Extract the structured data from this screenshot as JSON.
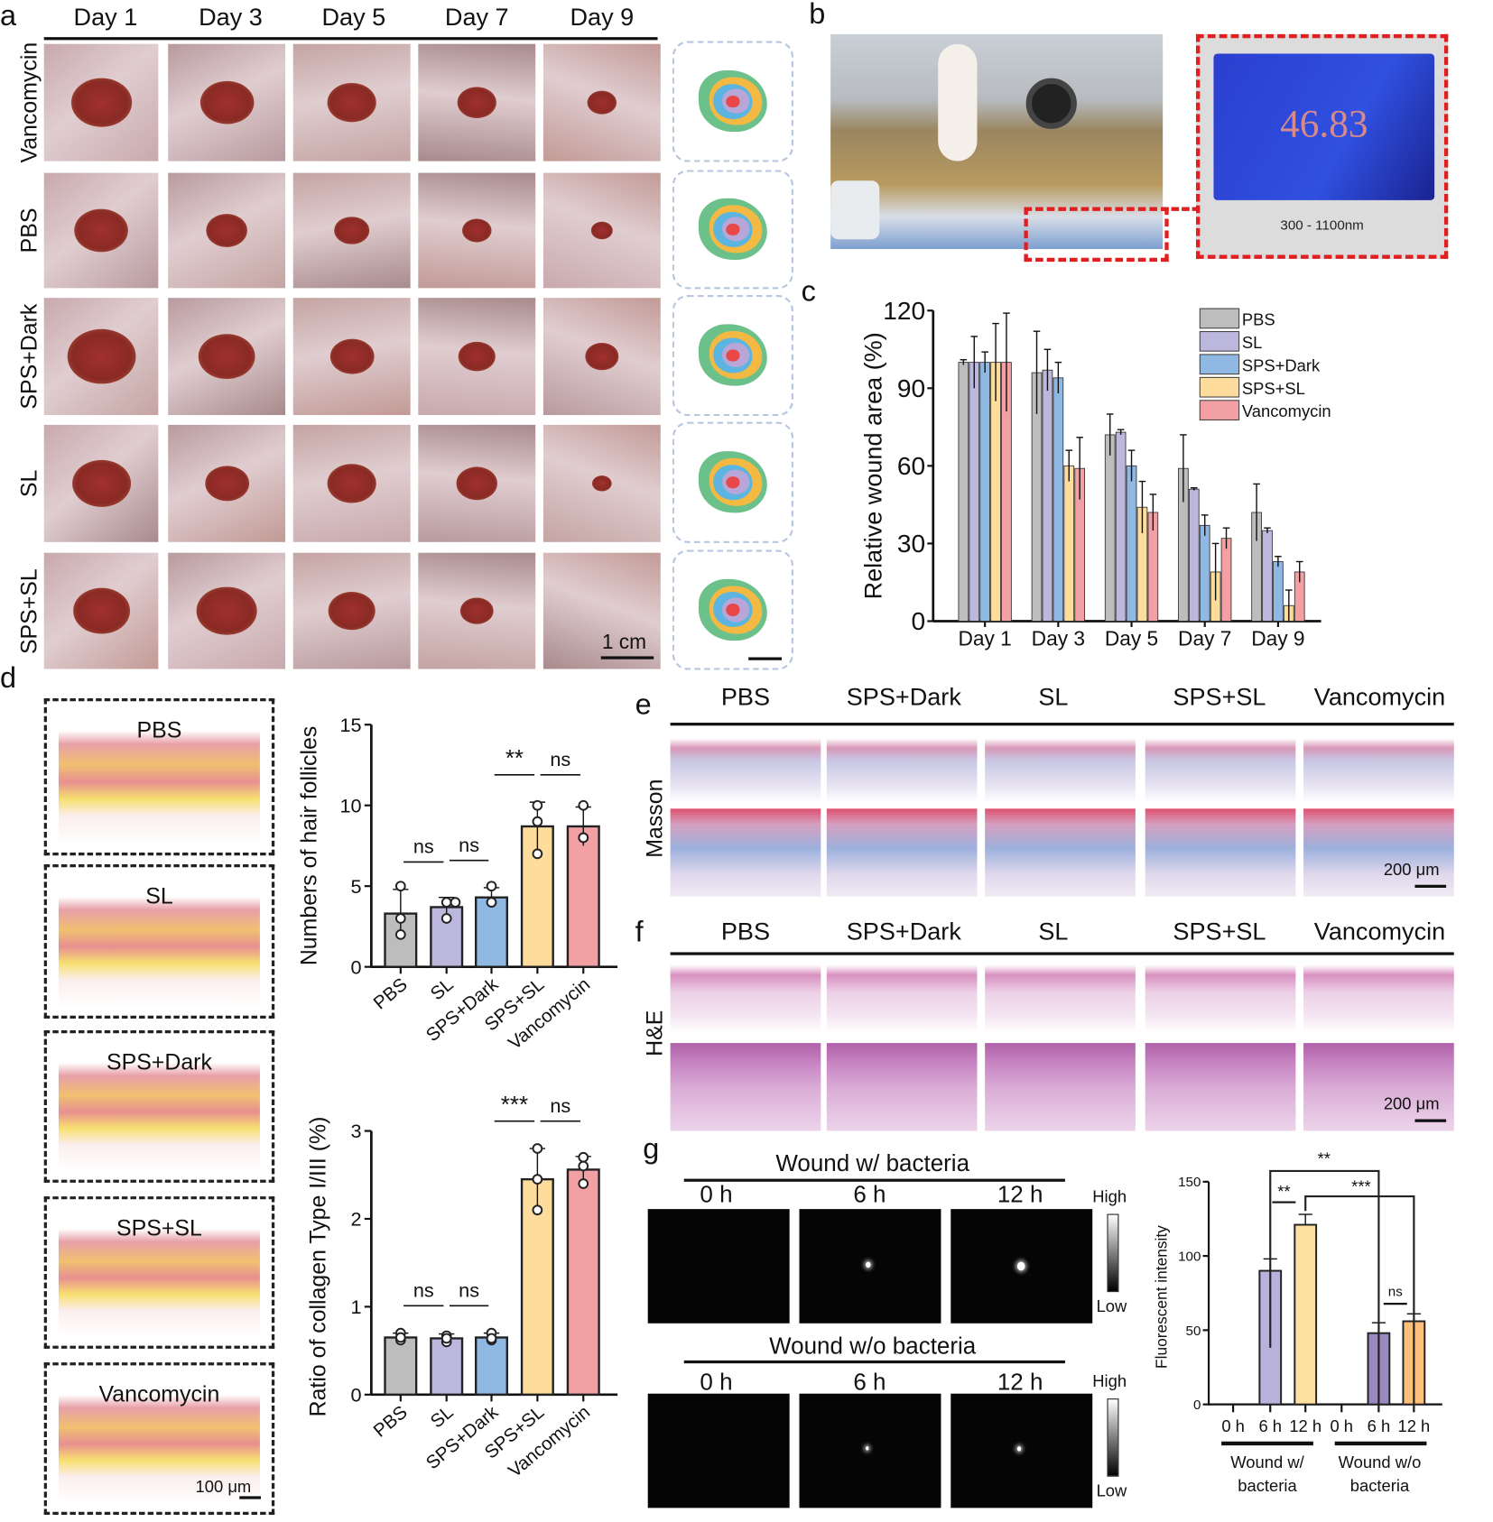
{
  "panel_labels": {
    "a": "a",
    "b": "b",
    "c": "c",
    "d": "d",
    "e": "e",
    "f": "f",
    "g": "g"
  },
  "panel_a": {
    "days": [
      "Day 1",
      "Day 3",
      "Day 5",
      "Day 7",
      "Day 9"
    ],
    "groups": [
      "Vancomycin",
      "PBS",
      "SPS+Dark",
      "SL",
      "SPS+SL"
    ],
    "scale_bar": "1 cm"
  },
  "panel_b": {
    "reading": "46.83",
    "range": "300 - 1100nm"
  },
  "panel_d": {
    "groups": [
      "PBS",
      "SL",
      "SPS+Dark",
      "SPS+SL",
      "Vancomycin"
    ],
    "scale_bar": "100 μm"
  },
  "panel_e": {
    "stain": "Masson",
    "groups": [
      "PBS",
      "SPS+Dark",
      "SL",
      "SPS+SL",
      "Vancomycin"
    ],
    "scale_bar": "200 μm"
  },
  "panel_f": {
    "stain": "H&E",
    "groups": [
      "PBS",
      "SPS+Dark",
      "SL",
      "SPS+SL",
      "Vancomycin"
    ],
    "scale_bar": "200 μm"
  },
  "panel_g": {
    "row1_title": "Wound w/ bacteria",
    "row2_title": "Wound w/o bacteria",
    "times": [
      "0 h",
      "6 h",
      "12 h"
    ],
    "colorbar_high": "High",
    "colorbar_low": "Low"
  },
  "colors": {
    "PBS": "#bdbdbd",
    "SL": "#bcb7dd",
    "SPS+Dark": "#8fb8e2",
    "SPS+SL": "#fddc9c",
    "Vancomycin": "#f2a0a4",
    "scale_red": "#e02020"
  },
  "chart_data": [
    {
      "type": "bar",
      "panel": "c",
      "categories": [
        "Day 1",
        "Day 3",
        "Day 5",
        "Day 7",
        "Day 9"
      ],
      "ylabel": "Relative wound area (%)",
      "ylim": [
        0,
        120
      ],
      "yticks": [
        0,
        30,
        60,
        90,
        120
      ],
      "legend": "top-right",
      "series": [
        {
          "name": "PBS",
          "values": [
            100,
            96,
            72,
            59,
            42
          ],
          "error": [
            1,
            16,
            8,
            13,
            11
          ]
        },
        {
          "name": "SL",
          "values": [
            100,
            97,
            73,
            51,
            35
          ],
          "error": [
            10,
            8,
            1,
            0.5,
            1
          ]
        },
        {
          "name": "SPS+Dark",
          "values": [
            100,
            94,
            60,
            37,
            23
          ],
          "error": [
            4,
            6,
            6,
            4,
            2
          ]
        },
        {
          "name": "SPS+SL",
          "values": [
            100,
            60,
            44,
            19,
            6
          ],
          "error": [
            15,
            6,
            10,
            11,
            6
          ]
        },
        {
          "name": "Vancomycin",
          "values": [
            100,
            59,
            42,
            32,
            19
          ],
          "error": [
            19,
            12,
            7,
            4,
            4
          ]
        }
      ]
    },
    {
      "type": "bar",
      "panel": "d-top",
      "categories": [
        "PBS",
        "SL",
        "SPS+Dark",
        "SPS+SL",
        "Vancomycin"
      ],
      "ylabel": "Numbers of hair follicles",
      "ylim": [
        0,
        15
      ],
      "yticks": [
        0,
        5,
        10,
        15
      ],
      "values": [
        3.3,
        3.7,
        4.3,
        8.7,
        8.7
      ],
      "error": [
        1.5,
        0.6,
        0.6,
        1.5,
        1.2
      ],
      "points": [
        [
          5,
          3,
          2
        ],
        [
          4,
          3,
          4
        ],
        [
          5,
          4,
          4
        ],
        [
          10,
          9,
          7
        ],
        [
          10,
          8,
          8
        ]
      ],
      "significance": [
        {
          "pair": [
            0,
            1
          ],
          "label": "ns"
        },
        {
          "pair": [
            1,
            2
          ],
          "label": "ns"
        },
        {
          "pair": [
            2,
            3
          ],
          "label": "**"
        },
        {
          "pair": [
            3,
            4
          ],
          "label": "ns"
        }
      ]
    },
    {
      "type": "bar",
      "panel": "d-bottom",
      "categories": [
        "PBS",
        "SL",
        "SPS+Dark",
        "SPS+SL",
        "Vancomycin"
      ],
      "ylabel": "Ratio of collagen Type I/III (%)",
      "ylim": [
        0,
        3
      ],
      "yticks": [
        0,
        1,
        2,
        3
      ],
      "values": [
        0.65,
        0.64,
        0.65,
        2.45,
        2.56
      ],
      "error": [
        0.05,
        0.05,
        0.05,
        0.35,
        0.15
      ],
      "points": [
        [
          0.62,
          0.7,
          0.65
        ],
        [
          0.6,
          0.67,
          0.64
        ],
        [
          0.62,
          0.7,
          0.64
        ],
        [
          2.8,
          2.45,
          2.1
        ],
        [
          2.7,
          2.4,
          2.6
        ]
      ],
      "significance": [
        {
          "pair": [
            0,
            1
          ],
          "label": "ns"
        },
        {
          "pair": [
            1,
            2
          ],
          "label": "ns"
        },
        {
          "pair": [
            2,
            3
          ],
          "label": "***"
        },
        {
          "pair": [
            3,
            4
          ],
          "label": "ns"
        }
      ]
    },
    {
      "type": "bar",
      "panel": "g",
      "categories": [
        "0 h",
        "6 h",
        "12 h",
        "0 h",
        "6 h",
        "12 h"
      ],
      "groups": [
        "Wound w/ bacteria",
        "Wound w/o bacteria"
      ],
      "ylabel": "Fluorescent intensity",
      "ylim": [
        0,
        150
      ],
      "yticks": [
        0,
        50,
        100,
        150
      ],
      "values": [
        0,
        90,
        121,
        0,
        48,
        56
      ],
      "error": [
        0,
        8,
        7,
        0,
        7,
        5
      ],
      "bar_colors": [
        "#b8b3dc",
        "#b8b3dc",
        "#fde0a0",
        "#9a88c0",
        "#9a88c0",
        "#fcc07a"
      ],
      "significance": [
        {
          "pair": [
            1,
            2
          ],
          "label": "**"
        },
        {
          "pair": [
            1,
            4
          ],
          "label": "**"
        },
        {
          "pair": [
            2,
            5
          ],
          "label": "***"
        },
        {
          "pair": [
            4,
            5
          ],
          "label": "ns"
        }
      ]
    }
  ]
}
